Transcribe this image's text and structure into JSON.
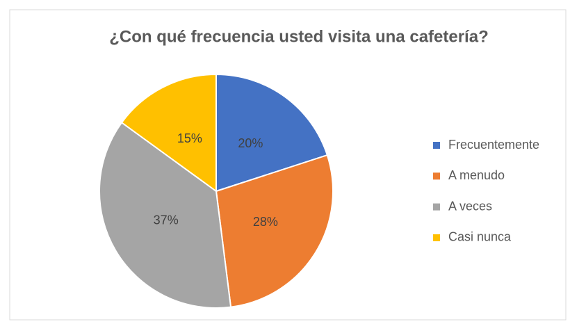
{
  "chart_data": {
    "type": "pie",
    "title": "¿Con qué frecuencia usted visita una cafetería?",
    "categories": [
      "Frecuentemente",
      "A menudo",
      "A veces",
      "Casi nunca"
    ],
    "values": [
      20,
      28,
      37,
      15
    ],
    "value_labels": [
      "20%",
      "28%",
      "37%",
      "15%"
    ],
    "colors": [
      "#4472c4",
      "#ed7d31",
      "#a5a5a5",
      "#ffc000"
    ],
    "legend": "right"
  }
}
